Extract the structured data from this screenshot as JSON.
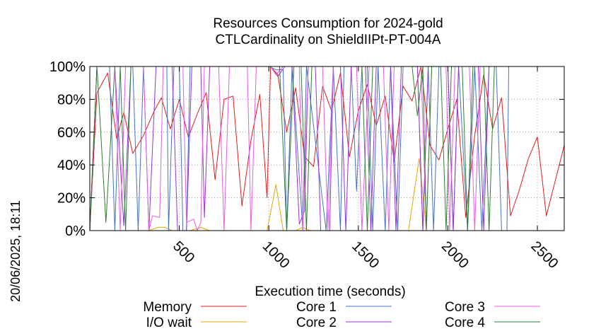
{
  "chart_data": {
    "type": "line",
    "title": [
      "Resources Consumption for 2024-gold",
      "CTLCardinality on ShieldIIPt-PT-004A"
    ],
    "xlabel": "Execution time (seconds)",
    "ylabel": "",
    "timestamp": "20/06/2025, 18:11",
    "xlim": [
      0,
      2650
    ],
    "ylim": [
      0,
      100
    ],
    "x_ticks": [
      {
        "value": 500,
        "label": "500"
      },
      {
        "value": 1000,
        "label": "1000"
      },
      {
        "value": 1500,
        "label": "1500"
      },
      {
        "value": 2000,
        "label": "2000"
      },
      {
        "value": 2500,
        "label": "2500"
      }
    ],
    "y_ticks": [
      {
        "value": 0,
        "label": "0%"
      },
      {
        "value": 20,
        "label": "20%"
      },
      {
        "value": 40,
        "label": "40%"
      },
      {
        "value": 60,
        "label": "60%"
      },
      {
        "value": 80,
        "label": "80%"
      },
      {
        "value": 100,
        "label": "100%"
      }
    ],
    "grid": true,
    "legend_position": "bottom",
    "series": [
      {
        "name": "Memory",
        "color": "#e41a1c",
        "points": [
          [
            0,
            0
          ],
          [
            40,
            84
          ],
          [
            100,
            96
          ],
          [
            150,
            56
          ],
          [
            190,
            72
          ],
          [
            240,
            47
          ],
          [
            300,
            58
          ],
          [
            360,
            73
          ],
          [
            400,
            81
          ],
          [
            450,
            62
          ],
          [
            500,
            80
          ],
          [
            550,
            57
          ],
          [
            600,
            71
          ],
          [
            650,
            84
          ],
          [
            700,
            31
          ],
          [
            750,
            80
          ],
          [
            800,
            82
          ],
          [
            850,
            15
          ],
          [
            900,
            55
          ],
          [
            950,
            83
          ],
          [
            990,
            20
          ],
          [
            1010,
            100
          ],
          [
            1050,
            95
          ],
          [
            1100,
            60
          ],
          [
            1150,
            87
          ],
          [
            1200,
            45
          ],
          [
            1250,
            39
          ],
          [
            1300,
            88
          ],
          [
            1350,
            73
          ],
          [
            1400,
            96
          ],
          [
            1450,
            45
          ],
          [
            1500,
            73
          ],
          [
            1550,
            89
          ],
          [
            1600,
            64
          ],
          [
            1650,
            82
          ],
          [
            1700,
            42
          ],
          [
            1750,
            88
          ],
          [
            1800,
            79
          ],
          [
            1850,
            100
          ],
          [
            1900,
            52
          ],
          [
            1950,
            43
          ],
          [
            2000,
            62
          ],
          [
            2050,
            80
          ],
          [
            2100,
            8
          ],
          [
            2150,
            58
          ],
          [
            2200,
            95
          ],
          [
            2250,
            62
          ],
          [
            2300,
            81
          ],
          [
            2350,
            9
          ],
          [
            2400,
            25
          ],
          [
            2450,
            44
          ],
          [
            2500,
            57
          ],
          [
            2550,
            9
          ],
          [
            2650,
            52
          ]
        ]
      },
      {
        "name": "I/O wait",
        "color": "#e6a700",
        "points": [
          [
            0,
            0
          ],
          [
            330,
            0
          ],
          [
            380,
            2
          ],
          [
            420,
            2
          ],
          [
            460,
            0
          ],
          [
            560,
            0
          ],
          [
            620,
            2
          ],
          [
            670,
            0
          ],
          [
            990,
            0
          ],
          [
            1040,
            28
          ],
          [
            1080,
            0
          ],
          [
            1150,
            0
          ],
          [
            1190,
            2
          ],
          [
            1230,
            0
          ],
          [
            1780,
            0
          ],
          [
            1840,
            44
          ],
          [
            1880,
            0
          ],
          [
            2650,
            0
          ]
        ]
      },
      {
        "name": "Core 1",
        "color": "#4472c4",
        "points": [
          [
            0,
            0
          ],
          [
            40,
            100
          ],
          [
            110,
            100
          ],
          [
            140,
            0
          ],
          [
            170,
            100
          ],
          [
            240,
            100
          ],
          [
            270,
            0
          ],
          [
            300,
            100
          ],
          [
            430,
            100
          ],
          [
            440,
            0
          ],
          [
            470,
            100
          ],
          [
            500,
            100
          ],
          [
            520,
            0
          ],
          [
            540,
            0
          ],
          [
            560,
            100
          ],
          [
            1000,
            100
          ],
          [
            1040,
            98
          ],
          [
            1080,
            98
          ],
          [
            1100,
            0
          ],
          [
            1130,
            100
          ],
          [
            1190,
            0
          ],
          [
            1210,
            100
          ],
          [
            1320,
            0
          ],
          [
            1360,
            100
          ],
          [
            1400,
            0
          ],
          [
            1420,
            100
          ],
          [
            1460,
            100
          ],
          [
            1490,
            24
          ],
          [
            1520,
            100
          ],
          [
            1550,
            100
          ],
          [
            1580,
            0
          ],
          [
            1610,
            100
          ],
          [
            1650,
            0
          ],
          [
            1680,
            100
          ],
          [
            1720,
            0
          ],
          [
            1750,
            100
          ],
          [
            1830,
            100
          ],
          [
            1860,
            0
          ],
          [
            1890,
            100
          ],
          [
            1920,
            0
          ],
          [
            1950,
            100
          ],
          [
            2000,
            100
          ],
          [
            2030,
            0
          ],
          [
            2060,
            100
          ],
          [
            2110,
            0
          ],
          [
            2150,
            100
          ],
          [
            2190,
            0
          ],
          [
            2230,
            100
          ],
          [
            2270,
            100
          ],
          [
            2300,
            0
          ],
          [
            2330,
            0
          ],
          [
            2340,
            100
          ],
          [
            2650,
            100
          ]
        ]
      },
      {
        "name": "Core 2",
        "color": "#9b30d9",
        "points": [
          [
            0,
            0
          ],
          [
            40,
            100
          ],
          [
            140,
            100
          ],
          [
            190,
            3
          ],
          [
            230,
            100
          ],
          [
            300,
            100
          ],
          [
            330,
            0
          ],
          [
            370,
            100
          ],
          [
            460,
            100
          ],
          [
            490,
            0
          ],
          [
            540,
            0
          ],
          [
            570,
            100
          ],
          [
            620,
            100
          ],
          [
            640,
            8
          ],
          [
            670,
            100
          ],
          [
            1010,
            100
          ],
          [
            1050,
            94
          ],
          [
            1090,
            100
          ],
          [
            1130,
            100
          ],
          [
            1170,
            4
          ],
          [
            1200,
            12
          ],
          [
            1220,
            100
          ],
          [
            1260,
            100
          ],
          [
            1290,
            0
          ],
          [
            1340,
            0
          ],
          [
            1360,
            100
          ],
          [
            1400,
            100
          ],
          [
            1430,
            0
          ],
          [
            1460,
            100
          ],
          [
            1540,
            100
          ],
          [
            1570,
            0
          ],
          [
            1600,
            100
          ],
          [
            1680,
            100
          ],
          [
            1710,
            0
          ],
          [
            1740,
            100
          ],
          [
            1830,
            100
          ],
          [
            1860,
            0
          ],
          [
            1890,
            100
          ],
          [
            2000,
            100
          ],
          [
            2030,
            0
          ],
          [
            2060,
            100
          ],
          [
            2170,
            100
          ],
          [
            2200,
            0
          ],
          [
            2230,
            100
          ],
          [
            2650,
            100
          ]
        ]
      },
      {
        "name": "Core 3",
        "color": "#e65ce6",
        "points": [
          [
            0,
            0
          ],
          [
            40,
            100
          ],
          [
            140,
            100
          ],
          [
            170,
            0
          ],
          [
            200,
            100
          ],
          [
            300,
            100
          ],
          [
            330,
            0
          ],
          [
            350,
            9
          ],
          [
            390,
            8
          ],
          [
            410,
            100
          ],
          [
            520,
            100
          ],
          [
            540,
            5
          ],
          [
            580,
            7
          ],
          [
            600,
            0
          ],
          [
            620,
            5
          ],
          [
            640,
            100
          ],
          [
            720,
            100
          ],
          [
            750,
            0
          ],
          [
            780,
            100
          ],
          [
            880,
            100
          ],
          [
            900,
            0
          ],
          [
            930,
            100
          ],
          [
            1010,
            100
          ],
          [
            1040,
            95
          ],
          [
            1080,
            100
          ],
          [
            1170,
            100
          ],
          [
            1190,
            0
          ],
          [
            1220,
            100
          ],
          [
            1300,
            100
          ],
          [
            1330,
            0
          ],
          [
            1360,
            100
          ],
          [
            1490,
            100
          ],
          [
            1520,
            0
          ],
          [
            1560,
            100
          ],
          [
            1640,
            100
          ],
          [
            1670,
            0
          ],
          [
            1700,
            100
          ],
          [
            1850,
            100
          ],
          [
            1880,
            0
          ],
          [
            1910,
            100
          ],
          [
            1990,
            100
          ],
          [
            2010,
            0
          ],
          [
            2040,
            100
          ],
          [
            2120,
            100
          ],
          [
            2150,
            0
          ],
          [
            2180,
            100
          ],
          [
            2650,
            100
          ]
        ]
      },
      {
        "name": "Core 4",
        "color": "#2e7d32",
        "points": [
          [
            0,
            0
          ],
          [
            40,
            100
          ],
          [
            90,
            5
          ],
          [
            140,
            100
          ],
          [
            170,
            100
          ],
          [
            200,
            0
          ],
          [
            230,
            100
          ],
          [
            1030,
            100
          ],
          [
            1060,
            100
          ],
          [
            1100,
            0
          ],
          [
            1140,
            100
          ],
          [
            1180,
            100
          ],
          [
            1210,
            0
          ],
          [
            1240,
            100
          ],
          [
            1520,
            100
          ],
          [
            1550,
            0
          ],
          [
            1580,
            100
          ],
          [
            1800,
            100
          ],
          [
            1830,
            70
          ],
          [
            1860,
            100
          ],
          [
            1880,
            0
          ],
          [
            1910,
            100
          ],
          [
            1960,
            100
          ],
          [
            1990,
            0
          ],
          [
            2020,
            100
          ],
          [
            2080,
            100
          ],
          [
            2110,
            0
          ],
          [
            2140,
            100
          ],
          [
            2200,
            100
          ],
          [
            2230,
            0
          ],
          [
            2260,
            100
          ],
          [
            2330,
            100
          ],
          [
            2350,
            100
          ],
          [
            2650,
            100
          ]
        ]
      }
    ]
  }
}
